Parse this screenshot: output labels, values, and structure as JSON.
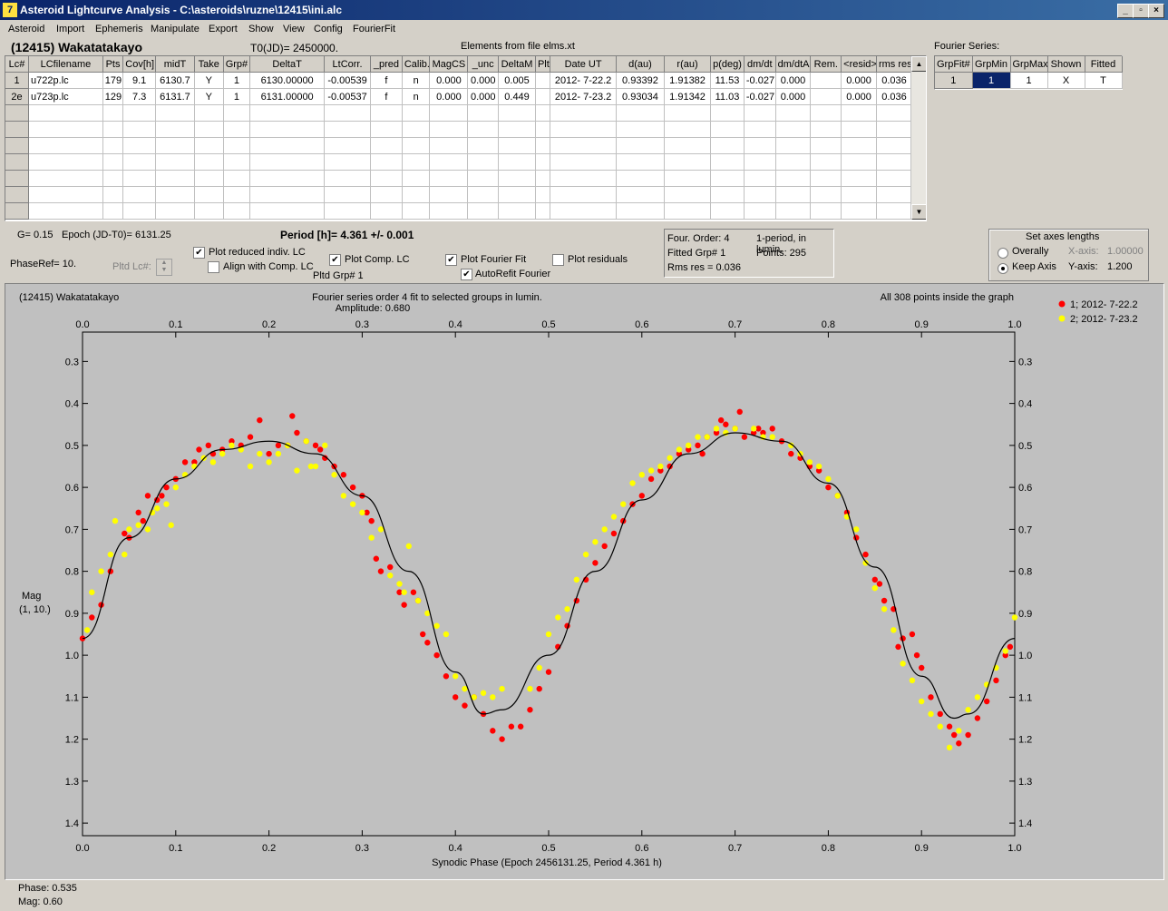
{
  "window": {
    "title": "Asteroid Lightcurve Analysis - C:\\asteroids\\ruzne\\12415\\ini.alc",
    "icon": "app-icon",
    "controls": [
      "_",
      "▫",
      "×"
    ]
  },
  "menu": [
    "Asteroid",
    "Import",
    "Ephemeris",
    "Manipulate",
    "Export",
    "Show",
    "View",
    "Config",
    "FourierFit"
  ],
  "header": {
    "asteroid_name": "(12415) Wakatatakayo",
    "t0": "T0(JD)= 2450000.",
    "elements": "Elements from file elms.xt"
  },
  "lc_table": {
    "columns": [
      "Lc#",
      "LCfilename",
      "Pts",
      "Cov[h]",
      "midT",
      "Take",
      "Grp#",
      "DeltaT",
      "LtCorr.",
      "_pred",
      "Calib.",
      "MagCS",
      "_unc",
      "DeltaM",
      "Plt",
      "Date UT",
      "d(au)",
      "r(au)",
      "p(deg)",
      "dm/dt",
      "dm/dtA",
      "Rem.",
      "<resid>",
      "rms res"
    ],
    "rows": [
      [
        "1",
        "u722p.lc",
        "179",
        "9.1",
        "6130.7",
        "Y",
        "1",
        "6130.00000",
        "-0.00539",
        "f",
        "n",
        "0.000",
        "0.000",
        "0.005",
        "",
        "2012- 7-22.2",
        "0.93392",
        "1.91382",
        "11.53",
        "-0.027",
        "0.000",
        "",
        "0.000",
        "0.036"
      ],
      [
        "2e",
        "u723p.lc",
        "129",
        "7.3",
        "6131.7",
        "Y",
        "1",
        "6131.00000",
        "-0.00537",
        "f",
        "n",
        "0.000",
        "0.000",
        "0.449",
        "",
        "2012- 7-23.2",
        "0.93034",
        "1.91342",
        "11.03",
        "-0.027",
        "0.000",
        "",
        "0.000",
        "0.036"
      ]
    ]
  },
  "fourier_table": {
    "label": "Fourier Series:",
    "columns": [
      "GrpFit#",
      "GrpMin",
      "GrpMax",
      "Shown",
      "Fitted"
    ],
    "row": [
      "1",
      "1",
      "1",
      "X",
      "T"
    ]
  },
  "controls": {
    "g_value": "G= 0.15",
    "epoch": "Epoch (JD-T0)= 6131.25",
    "period": "Period [h]= 4.361 +/- 0.001",
    "phase_ref": "PhaseRef= 10.",
    "pltd_lc_label": "Pltd Lc#:",
    "plot_reduced": "Plot reduced indiv. LC",
    "align_comp": "Align with Comp. LC",
    "plot_comp": "Plot Comp. LC",
    "pltd_grp": "Pltd Grp#  1",
    "plot_fourier": "Plot Fourier Fit",
    "autorefit": "AutoRefit Fourier",
    "plot_residuals": "Plot residuals",
    "checked": {
      "plot_reduced": true,
      "align_comp": false,
      "plot_comp": true,
      "plot_fourier": true,
      "autorefit": true,
      "plot_residuals": false
    }
  },
  "fit_info": {
    "order": "Four. Order:  4",
    "fitted_grp": "Fitted Grp# 1",
    "rms": "Rms res     = 0.036",
    "period_note": "1-period, in lumin.",
    "points": "Points: 295"
  },
  "axes_box": {
    "title": "Set axes lengths",
    "overally": "Overally",
    "keep_axis": "Keep Axis",
    "xaxis_label": "X-axis:",
    "xaxis_value": "1.00000",
    "yaxis_label": "Y-axis:",
    "yaxis_value": "1.200",
    "selected": "keep_axis"
  },
  "plot": {
    "name": "(12415) Wakatatakayo",
    "fit_title": "Fourier series order 4 fit to selected groups in lumin.",
    "amplitude": "Amplitude: 0.680",
    "points_note": "All 308 points inside the graph",
    "ylabel_1": "Mag",
    "ylabel_2": "(1, 10.)",
    "xlabel": "Synodic Phase (Epoch 2456131.25, Period 4.361 h)",
    "colors": {
      "group1": "#ff0000",
      "group2": "#ffff00",
      "background": "#c0c0c0",
      "fit_curve": "#000000"
    }
  },
  "status": {
    "phase": "Phase:  0.535",
    "mag": "Mag:    0.60"
  },
  "chart_data": {
    "type": "scatter",
    "title": "Fourier series order 4 fit to selected groups in lumin.",
    "xlabel": "Synodic Phase (Epoch 2456131.25, Period 4.361 h)",
    "ylabel": "Mag (1, 10.)",
    "xlim": [
      0.0,
      1.0
    ],
    "ylim": [
      1.43,
      0.23
    ],
    "y_inverted": true,
    "xticks": [
      "0.0",
      "0.1",
      "0.2",
      "0.3",
      "0.4",
      "0.5",
      "0.6",
      "0.7",
      "0.8",
      "0.9",
      "1.0"
    ],
    "yticks": [
      "0.3",
      "0.4",
      "0.5",
      "0.6",
      "0.7",
      "0.8",
      "0.9",
      "1.0",
      "1.1",
      "1.2",
      "1.3",
      "1.4"
    ],
    "legend_position": "top-right",
    "series": [
      {
        "name": "1; 2012- 7-22.2",
        "color": "#ff0000",
        "points": [
          [
            0.0,
            0.96
          ],
          [
            0.01,
            0.91
          ],
          [
            0.02,
            0.88
          ],
          [
            0.03,
            0.8
          ],
          [
            0.045,
            0.71
          ],
          [
            0.05,
            0.72
          ],
          [
            0.06,
            0.66
          ],
          [
            0.065,
            0.68
          ],
          [
            0.07,
            0.62
          ],
          [
            0.08,
            0.63
          ],
          [
            0.085,
            0.62
          ],
          [
            0.09,
            0.6
          ],
          [
            0.1,
            0.58
          ],
          [
            0.11,
            0.54
          ],
          [
            0.12,
            0.54
          ],
          [
            0.125,
            0.51
          ],
          [
            0.135,
            0.5
          ],
          [
            0.14,
            0.52
          ],
          [
            0.15,
            0.51
          ],
          [
            0.16,
            0.49
          ],
          [
            0.17,
            0.5
          ],
          [
            0.18,
            0.48
          ],
          [
            0.19,
            0.44
          ],
          [
            0.2,
            0.52
          ],
          [
            0.21,
            0.5
          ],
          [
            0.22,
            0.5
          ],
          [
            0.225,
            0.43
          ],
          [
            0.23,
            0.47
          ],
          [
            0.24,
            0.49
          ],
          [
            0.25,
            0.5
          ],
          [
            0.255,
            0.51
          ],
          [
            0.26,
            0.53
          ],
          [
            0.27,
            0.55
          ],
          [
            0.28,
            0.57
          ],
          [
            0.29,
            0.6
          ],
          [
            0.3,
            0.62
          ],
          [
            0.305,
            0.66
          ],
          [
            0.31,
            0.68
          ],
          [
            0.315,
            0.77
          ],
          [
            0.32,
            0.8
          ],
          [
            0.33,
            0.79
          ],
          [
            0.34,
            0.85
          ],
          [
            0.345,
            0.88
          ],
          [
            0.355,
            0.85
          ],
          [
            0.36,
            0.87
          ],
          [
            0.365,
            0.95
          ],
          [
            0.37,
            0.97
          ],
          [
            0.38,
            1.0
          ],
          [
            0.39,
            1.05
          ],
          [
            0.4,
            1.1
          ],
          [
            0.41,
            1.12
          ],
          [
            0.42,
            1.1
          ],
          [
            0.43,
            1.14
          ],
          [
            0.44,
            1.18
          ],
          [
            0.45,
            1.2
          ],
          [
            0.46,
            1.17
          ],
          [
            0.47,
            1.17
          ],
          [
            0.48,
            1.13
          ],
          [
            0.49,
            1.08
          ],
          [
            0.5,
            1.04
          ],
          [
            0.51,
            0.98
          ],
          [
            0.52,
            0.93
          ],
          [
            0.53,
            0.87
          ],
          [
            0.54,
            0.82
          ],
          [
            0.55,
            0.78
          ],
          [
            0.56,
            0.74
          ],
          [
            0.57,
            0.71
          ],
          [
            0.58,
            0.68
          ],
          [
            0.59,
            0.64
          ],
          [
            0.6,
            0.62
          ],
          [
            0.61,
            0.58
          ],
          [
            0.62,
            0.56
          ],
          [
            0.63,
            0.55
          ],
          [
            0.64,
            0.52
          ],
          [
            0.65,
            0.51
          ],
          [
            0.66,
            0.5
          ],
          [
            0.665,
            0.52
          ],
          [
            0.67,
            0.48
          ],
          [
            0.68,
            0.47
          ],
          [
            0.685,
            0.44
          ],
          [
            0.69,
            0.45
          ],
          [
            0.7,
            0.46
          ],
          [
            0.705,
            0.42
          ],
          [
            0.71,
            0.48
          ],
          [
            0.72,
            0.47
          ],
          [
            0.725,
            0.46
          ],
          [
            0.73,
            0.47
          ],
          [
            0.74,
            0.46
          ],
          [
            0.75,
            0.49
          ],
          [
            0.76,
            0.52
          ],
          [
            0.77,
            0.53
          ],
          [
            0.78,
            0.55
          ],
          [
            0.79,
            0.56
          ],
          [
            0.8,
            0.6
          ],
          [
            0.81,
            0.62
          ],
          [
            0.82,
            0.66
          ],
          [
            0.83,
            0.72
          ],
          [
            0.84,
            0.76
          ],
          [
            0.85,
            0.82
          ],
          [
            0.855,
            0.83
          ],
          [
            0.86,
            0.87
          ],
          [
            0.87,
            0.89
          ],
          [
            0.875,
            0.98
          ],
          [
            0.88,
            0.96
          ],
          [
            0.89,
            0.95
          ],
          [
            0.895,
            1.0
          ],
          [
            0.9,
            1.03
          ],
          [
            0.91,
            1.1
          ],
          [
            0.92,
            1.14
          ],
          [
            0.93,
            1.17
          ],
          [
            0.935,
            1.19
          ],
          [
            0.94,
            1.21
          ],
          [
            0.95,
            1.19
          ],
          [
            0.96,
            1.15
          ],
          [
            0.97,
            1.11
          ],
          [
            0.98,
            1.06
          ],
          [
            0.99,
            1.0
          ],
          [
            0.995,
            0.98
          ]
        ]
      },
      {
        "name": "2; 2012- 7-23.2",
        "color": "#ffff00",
        "points": [
          [
            0.005,
            0.94
          ],
          [
            0.01,
            0.85
          ],
          [
            0.02,
            0.8
          ],
          [
            0.03,
            0.76
          ],
          [
            0.035,
            0.68
          ],
          [
            0.045,
            0.76
          ],
          [
            0.05,
            0.7
          ],
          [
            0.06,
            0.69
          ],
          [
            0.07,
            0.7
          ],
          [
            0.075,
            0.66
          ],
          [
            0.08,
            0.65
          ],
          [
            0.09,
            0.64
          ],
          [
            0.095,
            0.69
          ],
          [
            0.1,
            0.6
          ],
          [
            0.11,
            0.57
          ],
          [
            0.12,
            0.55
          ],
          [
            0.13,
            0.53
          ],
          [
            0.14,
            0.54
          ],
          [
            0.15,
            0.52
          ],
          [
            0.16,
            0.5
          ],
          [
            0.17,
            0.51
          ],
          [
            0.18,
            0.55
          ],
          [
            0.19,
            0.52
          ],
          [
            0.2,
            0.54
          ],
          [
            0.21,
            0.52
          ],
          [
            0.22,
            0.5
          ],
          [
            0.23,
            0.56
          ],
          [
            0.24,
            0.49
          ],
          [
            0.245,
            0.55
          ],
          [
            0.25,
            0.55
          ],
          [
            0.26,
            0.5
          ],
          [
            0.27,
            0.57
          ],
          [
            0.28,
            0.62
          ],
          [
            0.29,
            0.64
          ],
          [
            0.3,
            0.66
          ],
          [
            0.31,
            0.72
          ],
          [
            0.32,
            0.7
          ],
          [
            0.33,
            0.81
          ],
          [
            0.34,
            0.83
          ],
          [
            0.345,
            0.85
          ],
          [
            0.35,
            0.74
          ],
          [
            0.36,
            0.87
          ],
          [
            0.37,
            0.9
          ],
          [
            0.38,
            0.93
          ],
          [
            0.39,
            0.95
          ],
          [
            0.4,
            1.05
          ],
          [
            0.41,
            1.08
          ],
          [
            0.42,
            1.1
          ],
          [
            0.43,
            1.09
          ],
          [
            0.44,
            1.1
          ],
          [
            0.45,
            1.08
          ],
          [
            0.48,
            1.08
          ],
          [
            0.49,
            1.03
          ],
          [
            0.5,
            0.95
          ],
          [
            0.51,
            0.91
          ],
          [
            0.52,
            0.89
          ],
          [
            0.53,
            0.82
          ],
          [
            0.54,
            0.76
          ],
          [
            0.55,
            0.73
          ],
          [
            0.56,
            0.7
          ],
          [
            0.57,
            0.67
          ],
          [
            0.58,
            0.64
          ],
          [
            0.59,
            0.59
          ],
          [
            0.6,
            0.57
          ],
          [
            0.61,
            0.56
          ],
          [
            0.62,
            0.55
          ],
          [
            0.63,
            0.53
          ],
          [
            0.64,
            0.51
          ],
          [
            0.65,
            0.5
          ],
          [
            0.66,
            0.48
          ],
          [
            0.67,
            0.48
          ],
          [
            0.68,
            0.46
          ],
          [
            0.69,
            0.47
          ],
          [
            0.7,
            0.46
          ],
          [
            0.72,
            0.46
          ],
          [
            0.73,
            0.48
          ],
          [
            0.74,
            0.48
          ],
          [
            0.76,
            0.5
          ],
          [
            0.77,
            0.52
          ],
          [
            0.78,
            0.54
          ],
          [
            0.79,
            0.55
          ],
          [
            0.8,
            0.58
          ],
          [
            0.81,
            0.62
          ],
          [
            0.82,
            0.67
          ],
          [
            0.83,
            0.7
          ],
          [
            0.84,
            0.78
          ],
          [
            0.85,
            0.84
          ],
          [
            0.86,
            0.89
          ],
          [
            0.87,
            0.94
          ],
          [
            0.88,
            1.02
          ],
          [
            0.89,
            1.06
          ],
          [
            0.9,
            1.11
          ],
          [
            0.91,
            1.14
          ],
          [
            0.92,
            1.17
          ],
          [
            0.93,
            1.22
          ],
          [
            0.94,
            1.18
          ],
          [
            0.95,
            1.13
          ],
          [
            0.96,
            1.1
          ],
          [
            0.97,
            1.07
          ],
          [
            0.98,
            1.03
          ],
          [
            0.99,
            0.99
          ],
          [
            1.0,
            0.91
          ]
        ]
      }
    ],
    "fit_curve": {
      "type": "line",
      "color": "#000000",
      "x": [
        0.0,
        0.05,
        0.1,
        0.15,
        0.2,
        0.25,
        0.3,
        0.35,
        0.4,
        0.43,
        0.45,
        0.5,
        0.55,
        0.6,
        0.65,
        0.7,
        0.75,
        0.8,
        0.85,
        0.9,
        0.935,
        0.95,
        1.0
      ],
      "y": [
        0.96,
        0.72,
        0.58,
        0.51,
        0.49,
        0.52,
        0.62,
        0.8,
        1.04,
        1.14,
        1.13,
        1.0,
        0.8,
        0.63,
        0.52,
        0.47,
        0.49,
        0.59,
        0.79,
        1.05,
        1.15,
        1.14,
        0.96
      ]
    }
  }
}
